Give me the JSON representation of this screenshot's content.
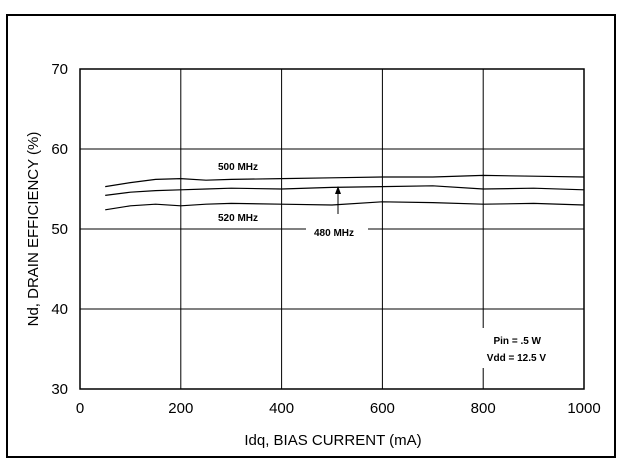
{
  "chart_data": {
    "type": "line",
    "title": "",
    "xlabel": "Idq, BIAS CURRENT  (mA)",
    "ylabel": "Nd, DRAIN EFFICIENCY  (%)",
    "xlim": [
      0,
      1000
    ],
    "ylim": [
      30,
      70
    ],
    "x_ticks": [
      0,
      200,
      400,
      600,
      800,
      1000
    ],
    "y_ticks": [
      30,
      40,
      50,
      60,
      70
    ],
    "grid": true,
    "series": [
      {
        "name": "500 MHz",
        "x": [
          50,
          100,
          150,
          200,
          250,
          300,
          400,
          500,
          600,
          700,
          800,
          900,
          1000
        ],
        "y": [
          55.3,
          55.8,
          56.2,
          56.3,
          56.1,
          56.2,
          56.3,
          56.4,
          56.5,
          56.5,
          56.7,
          56.6,
          56.5
        ]
      },
      {
        "name": "480 MHz",
        "x": [
          50,
          100,
          150,
          200,
          250,
          300,
          400,
          500,
          600,
          700,
          800,
          900,
          1000
        ],
        "y": [
          54.2,
          54.6,
          54.8,
          54.9,
          55.0,
          55.1,
          55.0,
          55.2,
          55.3,
          55.4,
          55.0,
          55.1,
          54.9
        ]
      },
      {
        "name": "520 MHz",
        "x": [
          50,
          100,
          150,
          200,
          250,
          300,
          400,
          500,
          600,
          700,
          800,
          900,
          1000
        ],
        "y": [
          52.4,
          52.9,
          53.1,
          52.9,
          53.1,
          53.2,
          53.1,
          53.0,
          53.4,
          53.3,
          53.1,
          53.2,
          53.0
        ]
      }
    ],
    "annotations": {
      "label_500": "500 MHz",
      "label_480": "480 MHz",
      "label_520": "520 MHz",
      "condition_line1": "Pin = .5 W",
      "condition_line2": "Vdd = 12.5 V"
    }
  }
}
